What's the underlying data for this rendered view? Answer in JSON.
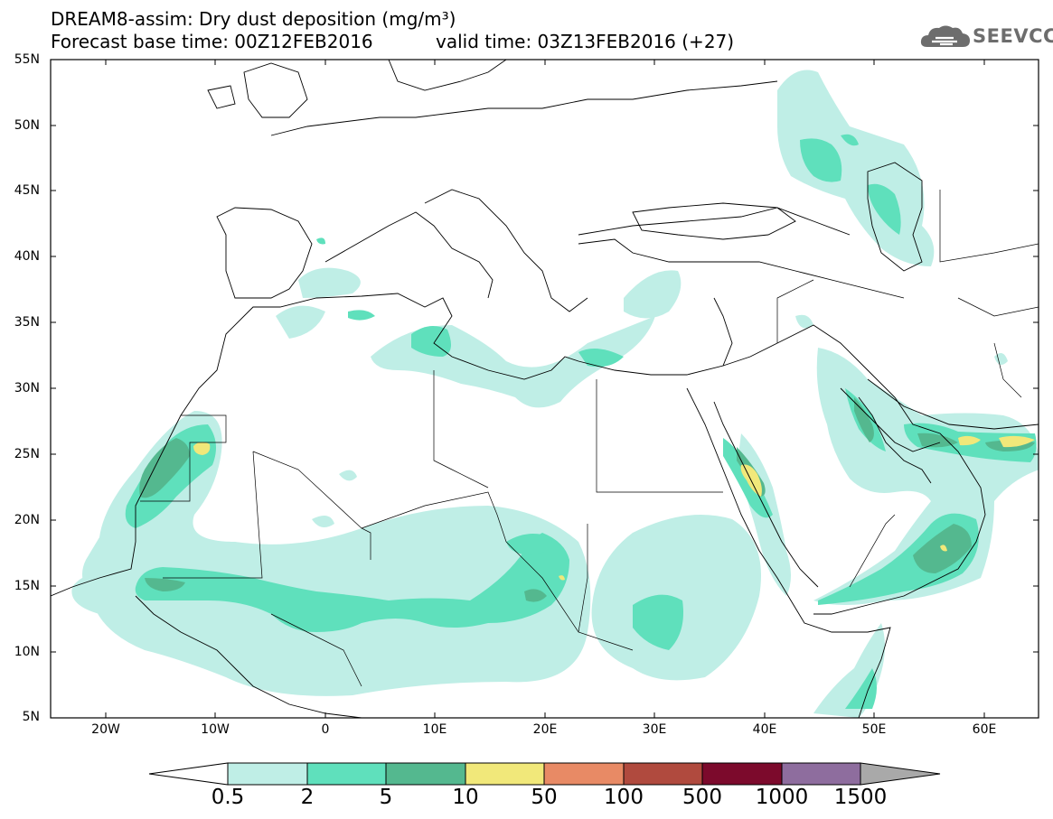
{
  "header": {
    "title_line1": "DREAM8-assim: Dry dust deposition (mg/m³)",
    "title_line2": "Forecast base time: 00Z12FEB2016",
    "valid_time": "valid time: 03Z13FEB2016 (+27)",
    "logo_text": "SEEVCCC",
    "logo_icon": "cloud-icon"
  },
  "map": {
    "lat_labels": [
      "55N",
      "50N",
      "45N",
      "40N",
      "35N",
      "30N",
      "25N",
      "20N",
      "15N",
      "10N",
      "5N"
    ],
    "lon_labels": [
      "20W",
      "10W",
      "0",
      "10E",
      "20E",
      "30E",
      "40E",
      "50E",
      "60E"
    ]
  },
  "colorbar": {
    "levels": [
      "0.5",
      "2",
      "5",
      "10",
      "50",
      "100",
      "500",
      "1000",
      "1500"
    ],
    "colors": [
      "#bfeee6",
      "#5fe0bc",
      "#54b88f",
      "#f1e87a",
      "#e88a65",
      "#b04a3e",
      "#7c0a2c",
      "#8e6d9e",
      "#a9a9a9"
    ]
  }
}
